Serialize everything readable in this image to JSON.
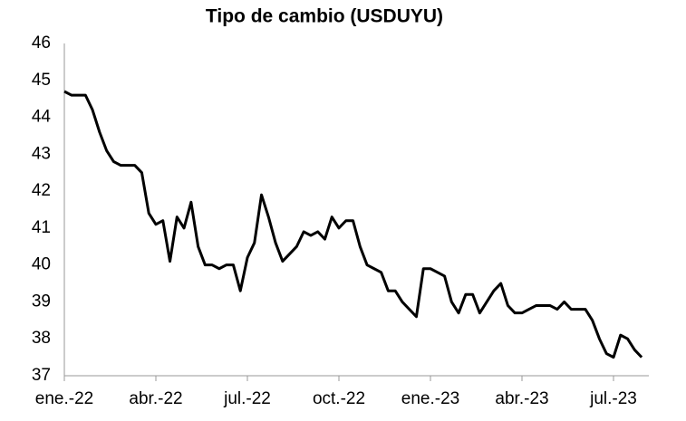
{
  "chart_data": {
    "type": "line",
    "title": "Tipo de cambio (USDUYU)",
    "categories": [
      "ene.-22",
      null,
      null,
      null,
      null,
      null,
      null,
      null,
      null,
      null,
      null,
      null,
      null,
      "abr.-22",
      null,
      null,
      null,
      null,
      null,
      null,
      null,
      null,
      null,
      null,
      null,
      null,
      "jul.-22",
      null,
      null,
      null,
      null,
      null,
      null,
      null,
      null,
      null,
      null,
      null,
      null,
      "oct.-22",
      null,
      null,
      null,
      null,
      null,
      null,
      null,
      null,
      null,
      null,
      null,
      null,
      "ene.-23",
      null,
      null,
      null,
      null,
      null,
      null,
      null,
      null,
      null,
      null,
      null,
      null,
      "abr.-23",
      null,
      null,
      null,
      null,
      null,
      null,
      null,
      null,
      null,
      null,
      null,
      null,
      "jul.-23",
      null,
      null,
      null,
      null
    ],
    "series": [
      {
        "name": "USDUYU",
        "color": "#000000",
        "values": [
          44.7,
          44.6,
          44.6,
          44.6,
          44.2,
          43.6,
          43.1,
          42.8,
          42.7,
          42.7,
          42.7,
          42.5,
          41.4,
          41.1,
          41.2,
          40.1,
          41.3,
          41.0,
          41.7,
          40.5,
          40.0,
          40.0,
          39.9,
          40.0,
          40.0,
          39.3,
          40.2,
          40.6,
          41.9,
          41.3,
          40.6,
          40.1,
          40.3,
          40.5,
          40.9,
          40.8,
          40.9,
          40.7,
          41.3,
          41.0,
          41.2,
          41.2,
          40.5,
          40.0,
          39.9,
          39.8,
          39.3,
          39.3,
          39.0,
          38.8,
          38.6,
          39.9,
          39.9,
          39.8,
          39.7,
          39.0,
          38.7,
          39.2,
          39.2,
          38.7,
          39.0,
          39.3,
          39.5,
          38.9,
          38.7,
          38.7,
          38.8,
          38.9,
          38.9,
          38.9,
          38.8,
          39.0,
          38.8,
          38.8,
          38.8,
          38.5,
          38.0,
          37.6,
          37.5,
          38.1,
          38.0,
          37.7,
          37.5
        ]
      }
    ],
    "ylim": [
      37,
      46
    ],
    "yticks": [
      37,
      38,
      39,
      40,
      41,
      42,
      43,
      44,
      45,
      46
    ],
    "grid": false
  }
}
